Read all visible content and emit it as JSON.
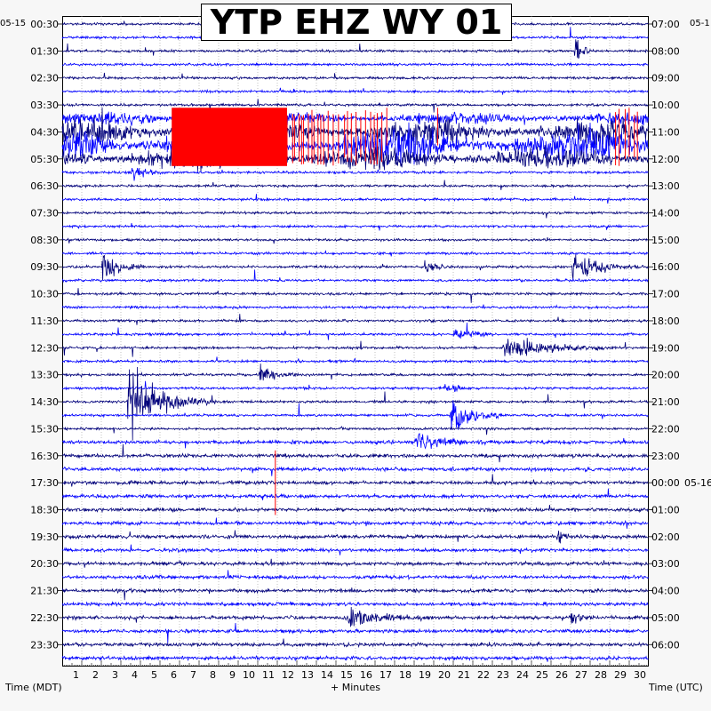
{
  "chart_data": {
    "type": "line",
    "title": "YTP EHZ WY 01",
    "xlabel": "+ Minutes",
    "left_axis_label": "Time (MDT)",
    "right_axis_label": "Time (UTC)",
    "start_date_left": "05-15",
    "start_date_right": "05-1",
    "date_change_label": "05-16",
    "x_range": [
      0,
      30
    ],
    "x_ticks": [
      "1",
      "2",
      "3",
      "4",
      "5",
      "6",
      "7",
      "8",
      "9",
      "10",
      "11",
      "12",
      "13",
      "14",
      "15",
      "16",
      "17",
      "18",
      "19",
      "20",
      "21",
      "22",
      "23",
      "24",
      "25",
      "26",
      "27",
      "28",
      "29",
      "30"
    ],
    "left_ticks": [
      "00:30",
      "01:30",
      "02:30",
      "03:30",
      "04:30",
      "05:30",
      "06:30",
      "07:30",
      "08:30",
      "09:30",
      "10:30",
      "11:30",
      "12:30",
      "13:30",
      "14:30",
      "15:30",
      "16:30",
      "17:30",
      "18:30",
      "19:30",
      "20:30",
      "21:30",
      "22:30",
      "23:30"
    ],
    "right_ticks": [
      "07:00",
      "08:00",
      "09:00",
      "10:00",
      "11:00",
      "12:00",
      "13:00",
      "14:00",
      "15:00",
      "16:00",
      "17:00",
      "18:00",
      "19:00",
      "20:00",
      "21:00",
      "22:00",
      "23:00",
      "00:00",
      "01:00",
      "02:00",
      "03:00",
      "04:00",
      "05:00",
      "06:00"
    ],
    "trace_count": 48,
    "trace_colors": [
      "#00007a",
      "#0000ff"
    ],
    "clip_color": "#ff0000",
    "grid": true,
    "events": [
      {
        "row": 2,
        "minute": 26.2,
        "duration": 0.6,
        "amplitude": 1.3
      },
      {
        "row": 11,
        "minute": 3.5,
        "duration": 1.2,
        "amplitude": 0.7
      },
      {
        "row": 18,
        "minute": 2.0,
        "duration": 1.5,
        "amplitude": 0.9
      },
      {
        "row": 18,
        "minute": 18.5,
        "duration": 1.0,
        "amplitude": 0.7
      },
      {
        "row": 18,
        "minute": 26.0,
        "duration": 2.5,
        "amplitude": 0.8
      },
      {
        "row": 23,
        "minute": 20.0,
        "duration": 1.5,
        "amplitude": 0.5
      },
      {
        "row": 24,
        "minute": 22.5,
        "duration": 4.0,
        "amplitude": 0.8
      },
      {
        "row": 26,
        "minute": 10.0,
        "duration": 1.5,
        "amplitude": 0.6
      },
      {
        "row": 27,
        "minute": 19.5,
        "duration": 1.0,
        "amplitude": 0.4
      },
      {
        "row": 28,
        "minute": 3.3,
        "duration": 3.0,
        "amplitude": 2.2
      },
      {
        "row": 29,
        "minute": 19.8,
        "duration": 2.0,
        "amplitude": 1.2
      },
      {
        "row": 31,
        "minute": 18.0,
        "duration": 3.0,
        "amplitude": 0.5
      },
      {
        "row": 38,
        "minute": 25.3,
        "duration": 0.6,
        "amplitude": 0.7
      },
      {
        "row": 44,
        "minute": 14.5,
        "duration": 3.0,
        "amplitude": 0.6
      },
      {
        "row": 44,
        "minute": 26.0,
        "duration": 0.8,
        "amplitude": 0.5
      }
    ],
    "noise_band": {
      "rows": [
        7,
        8,
        9,
        10
      ],
      "start_minute": 0,
      "end_minute": 30
    },
    "clipped_blocks": [
      {
        "rows": [
          7,
          8,
          9,
          10
        ],
        "start_minute": 5.6,
        "end_minute": 11.5,
        "type": "solid"
      },
      {
        "rows": [
          7,
          8,
          9,
          10
        ],
        "start_minute": 11.5,
        "end_minute": 16.5,
        "type": "lines"
      },
      {
        "rows": [
          7,
          8,
          9,
          10
        ],
        "start_minute": 28.3,
        "end_minute": 29.5,
        "type": "lines"
      }
    ],
    "spikes": [
      {
        "rows": [
          32,
          33,
          34,
          35,
          36
        ],
        "minute": 10.9
      }
    ]
  }
}
